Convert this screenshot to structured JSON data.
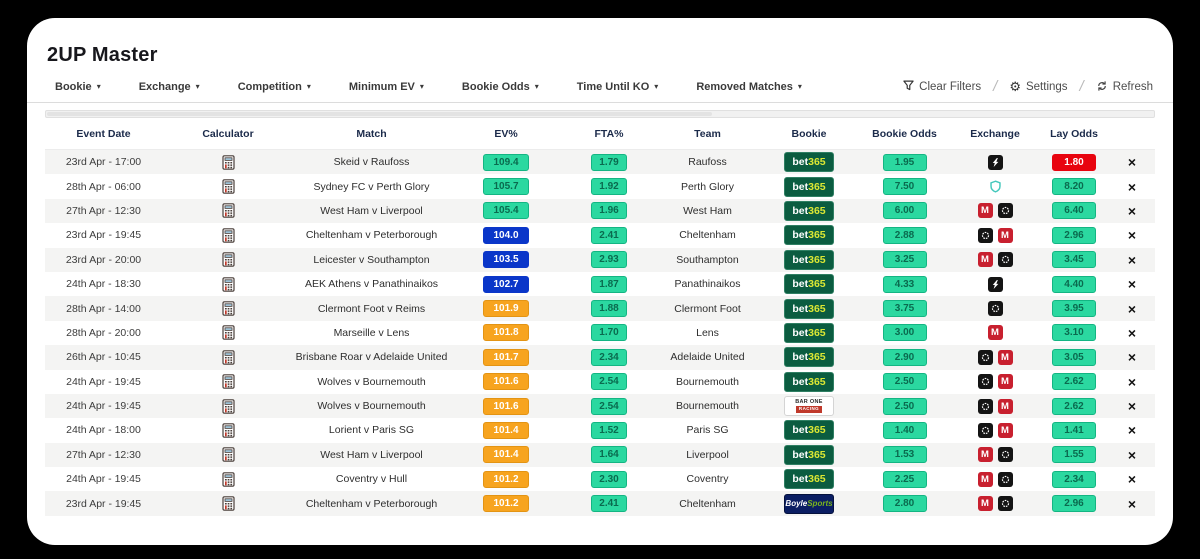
{
  "app": {
    "title": "2UP Master"
  },
  "ui": {
    "caret_glyph": "▾",
    "gear_glyph": "⚙",
    "remove_glyph": "×"
  },
  "filters": [
    {
      "label": "Bookie"
    },
    {
      "label": "Exchange"
    },
    {
      "label": "Competition"
    },
    {
      "label": "Minimum EV"
    },
    {
      "label": "Bookie Odds"
    },
    {
      "label": "Time Until KO"
    },
    {
      "label": "Removed Matches"
    }
  ],
  "actions": {
    "clear_filters": "Clear Filters",
    "settings": "Settings",
    "refresh": "Refresh",
    "separator": "/"
  },
  "colors": {
    "green_bg": "#2bd8a0",
    "green_border": "#14b583",
    "green_text": "#0a6a4e",
    "blue_bg": "#0a36c9",
    "orange_bg": "#f7a41f",
    "red_bg": "#e8040f",
    "bet365_bg": "#0b5c40",
    "bet365_num": "#dce834",
    "boylesports_bg": "#0b1e63",
    "boylesports_green": "#7ab51d",
    "matchbook_red": "#c8202f",
    "exchange_black": "#141414",
    "shield_teal": "#45c8bc",
    "row_alt": "#f4f4f3"
  },
  "bookies": {
    "bet365": {
      "part1": "bet",
      "part2": "365"
    },
    "boylesports": {
      "part1": "Boyle",
      "part2": "Sports"
    },
    "barone": {
      "line1": "BAR ONE",
      "line2": "RACING"
    }
  },
  "exchange_labels": {
    "matchbook": "M"
  },
  "table": {
    "columns": [
      "Event Date",
      "Calculator",
      "Match",
      "EV%",
      "FTA%",
      "Team",
      "Bookie",
      "Bookie Odds",
      "Exchange",
      "Lay Odds",
      ""
    ],
    "rows": [
      {
        "date": "23rd Apr - 17:00",
        "match": "Skeid v Raufoss",
        "ev": "109.4",
        "ev_style": "green",
        "fta": "1.79",
        "team": "Raufoss",
        "bookie": "bet365",
        "bookie_odds": "1.95",
        "exchanges": [
          "smarkets"
        ],
        "lay": "1.80",
        "lay_style": "red"
      },
      {
        "date": "28th Apr - 06:00",
        "match": "Sydney FC v Perth Glory",
        "ev": "105.7",
        "ev_style": "green",
        "fta": "1.92",
        "team": "Perth Glory",
        "bookie": "bet365",
        "bookie_odds": "7.50",
        "exchanges": [
          "shield"
        ],
        "lay": "8.20",
        "lay_style": "green"
      },
      {
        "date": "27th Apr - 12:30",
        "match": "West Ham v Liverpool",
        "ev": "105.4",
        "ev_style": "green",
        "fta": "1.96",
        "team": "West Ham",
        "bookie": "bet365",
        "bookie_odds": "6.00",
        "exchanges": [
          "matchbook",
          "orbit"
        ],
        "lay": "6.40",
        "lay_style": "green"
      },
      {
        "date": "23rd Apr - 19:45",
        "match": "Cheltenham v Peterborough",
        "ev": "104.0",
        "ev_style": "blue",
        "fta": "2.41",
        "team": "Cheltenham",
        "bookie": "bet365",
        "bookie_odds": "2.88",
        "exchanges": [
          "orbit",
          "matchbook"
        ],
        "lay": "2.96",
        "lay_style": "green"
      },
      {
        "date": "23rd Apr - 20:00",
        "match": "Leicester v Southampton",
        "ev": "103.5",
        "ev_style": "blue",
        "fta": "2.93",
        "team": "Southampton",
        "bookie": "bet365",
        "bookie_odds": "3.25",
        "exchanges": [
          "matchbook",
          "orbit"
        ],
        "lay": "3.45",
        "lay_style": "green"
      },
      {
        "date": "24th Apr - 18:30",
        "match": "AEK Athens v Panathinaikos",
        "ev": "102.7",
        "ev_style": "blue",
        "fta": "1.87",
        "team": "Panathinaikos",
        "bookie": "bet365",
        "bookie_odds": "4.33",
        "exchanges": [
          "smarkets"
        ],
        "lay": "4.40",
        "lay_style": "green"
      },
      {
        "date": "28th Apr - 14:00",
        "match": "Clermont Foot v Reims",
        "ev": "101.9",
        "ev_style": "orange",
        "fta": "1.88",
        "team": "Clermont Foot",
        "bookie": "bet365",
        "bookie_odds": "3.75",
        "exchanges": [
          "orbit"
        ],
        "lay": "3.95",
        "lay_style": "green"
      },
      {
        "date": "28th Apr - 20:00",
        "match": "Marseille v Lens",
        "ev": "101.8",
        "ev_style": "orange",
        "fta": "1.70",
        "team": "Lens",
        "bookie": "bet365",
        "bookie_odds": "3.00",
        "exchanges": [
          "matchbook"
        ],
        "lay": "3.10",
        "lay_style": "green"
      },
      {
        "date": "26th Apr - 10:45",
        "match": "Brisbane Roar v Adelaide United",
        "ev": "101.7",
        "ev_style": "orange",
        "fta": "2.34",
        "team": "Adelaide United",
        "bookie": "bet365",
        "bookie_odds": "2.90",
        "exchanges": [
          "orbit",
          "matchbook"
        ],
        "lay": "3.05",
        "lay_style": "green"
      },
      {
        "date": "24th Apr - 19:45",
        "match": "Wolves v Bournemouth",
        "ev": "101.6",
        "ev_style": "orange",
        "fta": "2.54",
        "team": "Bournemouth",
        "bookie": "bet365",
        "bookie_odds": "2.50",
        "exchanges": [
          "orbit",
          "matchbook"
        ],
        "lay": "2.62",
        "lay_style": "green"
      },
      {
        "date": "24th Apr - 19:45",
        "match": "Wolves v Bournemouth",
        "ev": "101.6",
        "ev_style": "orange",
        "fta": "2.54",
        "team": "Bournemouth",
        "bookie": "barone",
        "bookie_odds": "2.50",
        "exchanges": [
          "orbit",
          "matchbook"
        ],
        "lay": "2.62",
        "lay_style": "green"
      },
      {
        "date": "24th Apr - 18:00",
        "match": "Lorient v Paris SG",
        "ev": "101.4",
        "ev_style": "orange",
        "fta": "1.52",
        "team": "Paris SG",
        "bookie": "bet365",
        "bookie_odds": "1.40",
        "exchanges": [
          "orbit",
          "matchbook"
        ],
        "lay": "1.41",
        "lay_style": "green"
      },
      {
        "date": "27th Apr - 12:30",
        "match": "West Ham v Liverpool",
        "ev": "101.4",
        "ev_style": "orange",
        "fta": "1.64",
        "team": "Liverpool",
        "bookie": "bet365",
        "bookie_odds": "1.53",
        "exchanges": [
          "matchbook",
          "orbit"
        ],
        "lay": "1.55",
        "lay_style": "green"
      },
      {
        "date": "24th Apr - 19:45",
        "match": "Coventry v Hull",
        "ev": "101.2",
        "ev_style": "orange",
        "fta": "2.30",
        "team": "Coventry",
        "bookie": "bet365",
        "bookie_odds": "2.25",
        "exchanges": [
          "matchbook",
          "orbit"
        ],
        "lay": "2.34",
        "lay_style": "green"
      },
      {
        "date": "23rd Apr - 19:45",
        "match": "Cheltenham v Peterborough",
        "ev": "101.2",
        "ev_style": "orange",
        "fta": "2.41",
        "team": "Cheltenham",
        "bookie": "boylesports",
        "bookie_odds": "2.80",
        "exchanges": [
          "matchbook",
          "orbit"
        ],
        "lay": "2.96",
        "lay_style": "green"
      }
    ]
  }
}
